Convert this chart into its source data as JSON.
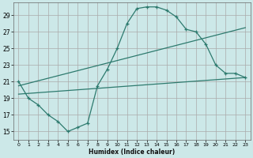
{
  "xlabel": "Humidex (Indice chaleur)",
  "ylabel": "",
  "bg_color": "#cce8e8",
  "grid_color": "#aaaaaa",
  "line_color": "#2d7a6e",
  "xlim": [
    -0.5,
    23.5
  ],
  "ylim": [
    14.0,
    30.5
  ],
  "yticks": [
    15,
    17,
    19,
    21,
    23,
    25,
    27,
    29
  ],
  "xticks": [
    0,
    1,
    2,
    3,
    4,
    5,
    6,
    7,
    8,
    9,
    10,
    11,
    12,
    13,
    14,
    15,
    16,
    17,
    18,
    19,
    20,
    21,
    22,
    23
  ],
  "line1_x": [
    0,
    1,
    2,
    3,
    4,
    5,
    6,
    7,
    8,
    9,
    10,
    11,
    12,
    13,
    14,
    15,
    16,
    17,
    18,
    19,
    20,
    21,
    22,
    23
  ],
  "line1_y": [
    21.0,
    19.0,
    18.2,
    17.0,
    16.2,
    15.0,
    15.5,
    16.0,
    20.5,
    22.5,
    25.0,
    28.0,
    29.8,
    30.0,
    30.0,
    29.6,
    28.8,
    27.3,
    27.0,
    25.5,
    23.0,
    22.0,
    22.0,
    21.5
  ],
  "line2_x": [
    0,
    23
  ],
  "line2_y": [
    19.5,
    21.5
  ],
  "line3_x": [
    0,
    23
  ],
  "line3_y": [
    20.5,
    27.5
  ]
}
